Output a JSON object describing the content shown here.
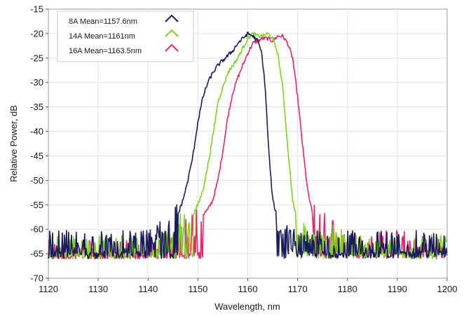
{
  "chart_data": {
    "type": "line",
    "xlabel": "Wavelength, nm",
    "ylabel": "Relative Power, dB",
    "xlim": [
      1120,
      1200
    ],
    "ylim": [
      -70,
      -15
    ],
    "x_ticks": [
      1120,
      1130,
      1140,
      1150,
      1160,
      1170,
      1180,
      1190,
      1200
    ],
    "y_ticks": [
      -70,
      -65,
      -60,
      -55,
      -50,
      -45,
      -40,
      -35,
      -30,
      -25,
      -20,
      -15
    ],
    "grid": true,
    "legend_position": "top-left",
    "series": [
      {
        "name": "8A Mean=1157.6nm",
        "color": "#1a1a5e",
        "noise_floor": [
          -66,
          -60
        ],
        "points": [
          [
            1120,
            -63
          ],
          [
            1138,
            -63
          ],
          [
            1142,
            -61
          ],
          [
            1144,
            -59
          ],
          [
            1146,
            -57
          ],
          [
            1147,
            -54
          ],
          [
            1148,
            -50
          ],
          [
            1149,
            -45
          ],
          [
            1150,
            -38
          ],
          [
            1151,
            -33
          ],
          [
            1152,
            -30
          ],
          [
            1153,
            -28
          ],
          [
            1154,
            -26.5
          ],
          [
            1155,
            -25.5
          ],
          [
            1156,
            -24.5
          ],
          [
            1157,
            -23.5
          ],
          [
            1158,
            -22
          ],
          [
            1159,
            -21
          ],
          [
            1160,
            -20
          ],
          [
            1161,
            -20.5
          ],
          [
            1162,
            -21.5
          ],
          [
            1162.8,
            -24
          ],
          [
            1163.5,
            -31
          ],
          [
            1164.2,
            -44
          ],
          [
            1165,
            -54
          ],
          [
            1166,
            -58
          ],
          [
            1167,
            -60
          ],
          [
            1168,
            -61.5
          ],
          [
            1170,
            -63
          ],
          [
            1200,
            -63
          ]
        ]
      },
      {
        "name": "14A Mean=1161nm",
        "color": "#7ed321",
        "noise_floor": [
          -66,
          -61
        ],
        "points": [
          [
            1120,
            -64
          ],
          [
            1142,
            -63
          ],
          [
            1145,
            -61
          ],
          [
            1147,
            -59
          ],
          [
            1149,
            -57
          ],
          [
            1150,
            -55
          ],
          [
            1151,
            -52
          ],
          [
            1152,
            -47
          ],
          [
            1153,
            -41
          ],
          [
            1154,
            -34
          ],
          [
            1155,
            -31
          ],
          [
            1156,
            -28
          ],
          [
            1157,
            -26.5
          ],
          [
            1158,
            -25
          ],
          [
            1159,
            -23
          ],
          [
            1160,
            -21
          ],
          [
            1161,
            -20
          ],
          [
            1162,
            -20.5
          ],
          [
            1163,
            -20.5
          ],
          [
            1164,
            -20
          ],
          [
            1165,
            -21
          ],
          [
            1166,
            -24
          ],
          [
            1167,
            -31
          ],
          [
            1168,
            -43
          ],
          [
            1169,
            -54
          ],
          [
            1170,
            -59
          ],
          [
            1172,
            -60
          ],
          [
            1174,
            -60.5
          ],
          [
            1176,
            -61
          ],
          [
            1180,
            -63
          ],
          [
            1200,
            -64
          ]
        ]
      },
      {
        "name": "16A Mean=1163.5nm",
        "color": "#e6286e",
        "noise_floor": [
          -66,
          -61
        ],
        "points": [
          [
            1120,
            -65
          ],
          [
            1140,
            -65
          ],
          [
            1144,
            -63
          ],
          [
            1146,
            -62
          ],
          [
            1148,
            -60
          ],
          [
            1150,
            -58
          ],
          [
            1152,
            -56
          ],
          [
            1153,
            -54
          ],
          [
            1154,
            -50
          ],
          [
            1155,
            -44
          ],
          [
            1156,
            -37
          ],
          [
            1157,
            -32
          ],
          [
            1158,
            -29
          ],
          [
            1159,
            -26.5
          ],
          [
            1160,
            -24
          ],
          [
            1161,
            -22
          ],
          [
            1162,
            -21.5
          ],
          [
            1163,
            -21
          ],
          [
            1164,
            -21
          ],
          [
            1165,
            -21.5
          ],
          [
            1166,
            -20.5
          ],
          [
            1167,
            -20.5
          ],
          [
            1168,
            -22
          ],
          [
            1169,
            -25
          ],
          [
            1170,
            -33
          ],
          [
            1171,
            -43
          ],
          [
            1172,
            -52
          ],
          [
            1173,
            -57
          ],
          [
            1175,
            -59
          ],
          [
            1178,
            -61
          ],
          [
            1182,
            -62
          ],
          [
            1200,
            -64
          ]
        ]
      }
    ]
  }
}
